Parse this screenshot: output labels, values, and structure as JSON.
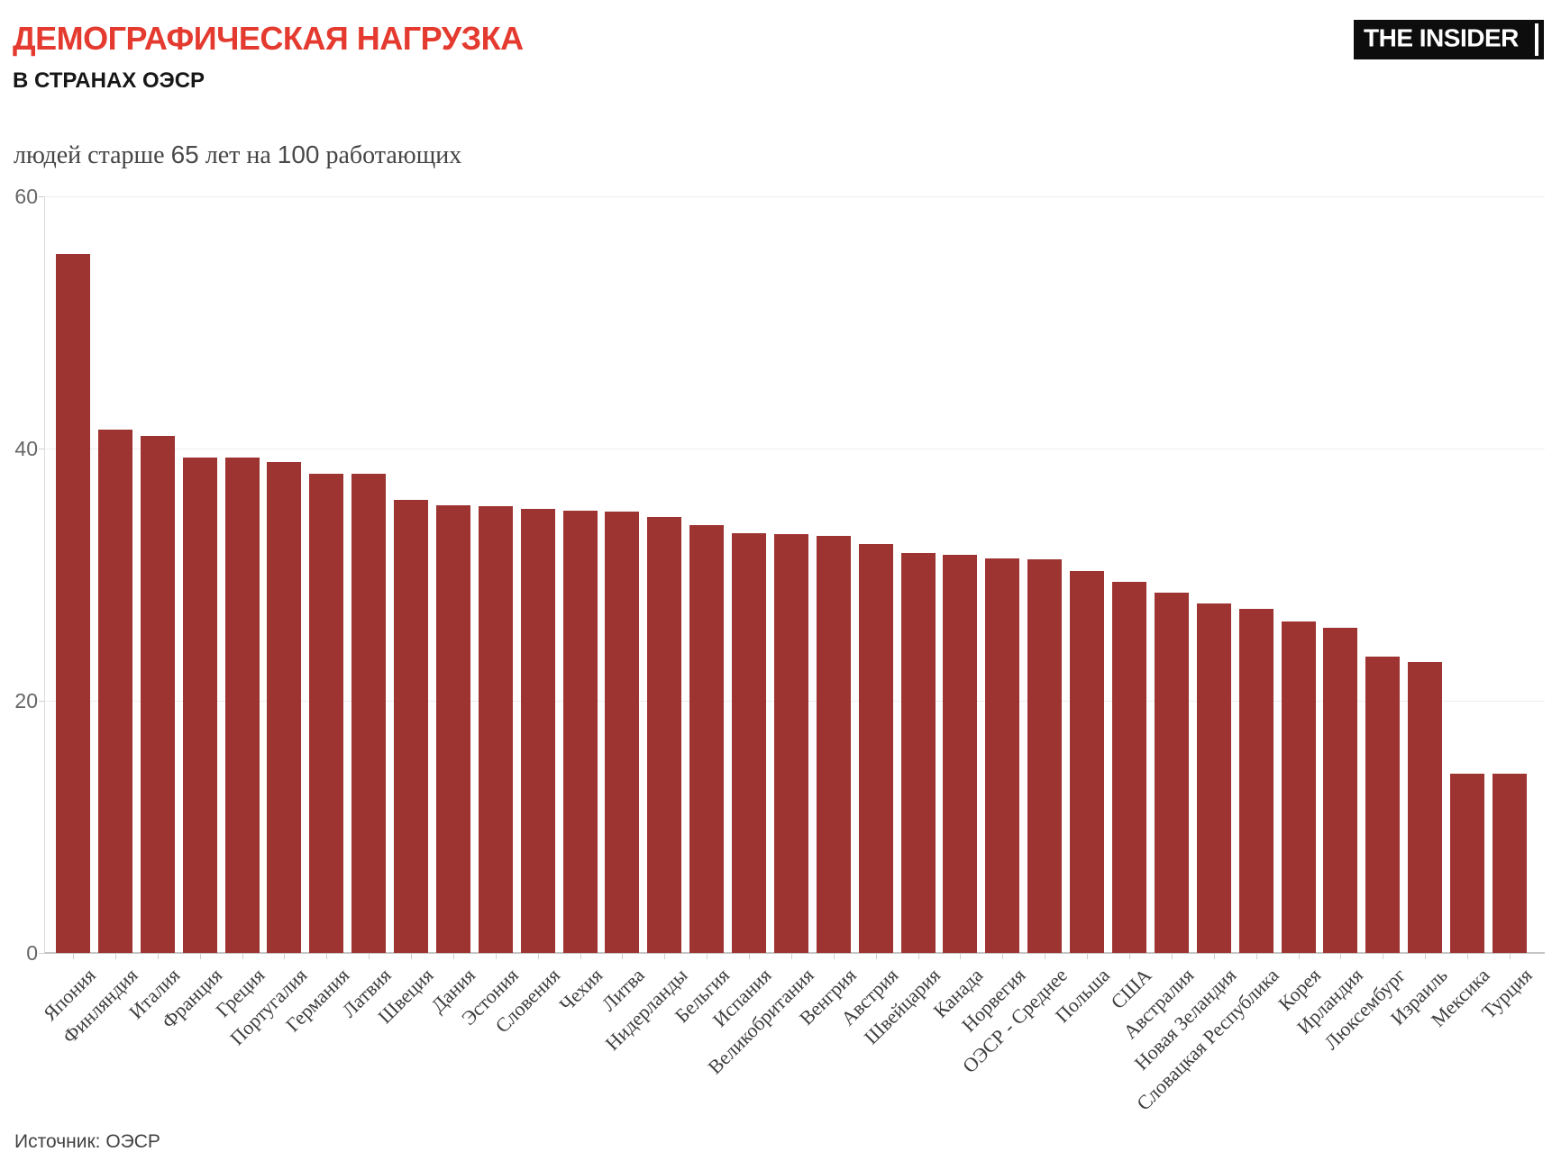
{
  "header": {
    "title": "ДЕМОГРАФИЧЕСКАЯ НАГРУЗКА",
    "subtitle": "В СТРАНАХ ОЭСР",
    "logo": "THE INSIDER"
  },
  "chart_data": {
    "type": "bar",
    "title": "людей старше 65 лет на 100 работающих",
    "ylabel": "людей старше 65 лет на 100 работающих",
    "xlabel": "",
    "categories": [
      "Япония",
      "Финляндия",
      "Италия",
      "Франция",
      "Греция",
      "Португалия",
      "Германия",
      "Латвия",
      "Швеция",
      "Дания",
      "Эстония",
      "Словения",
      "Чехия",
      "Литва",
      "Нидерланды",
      "Бельгия",
      "Испания",
      "Великобритания",
      "Венгрия",
      "Австрия",
      "Швейцария",
      "Канада",
      "Норвегия",
      "ОЭСР - Среднее",
      "Польша",
      "США",
      "Австралия",
      "Новая Зеландия",
      "Словацкая Республика",
      "Корея",
      "Ирландия",
      "Люксембург",
      "Израиль",
      "Мексика",
      "Турция"
    ],
    "values": [
      55.4,
      41.5,
      41.0,
      39.3,
      39.3,
      38.9,
      38.0,
      38.0,
      35.9,
      35.5,
      35.4,
      35.2,
      35.1,
      35.0,
      34.6,
      33.9,
      33.3,
      33.2,
      33.1,
      32.4,
      31.7,
      31.6,
      31.3,
      31.2,
      30.3,
      29.4,
      28.6,
      27.7,
      27.3,
      26.3,
      25.8,
      23.5,
      23.1,
      14.2,
      14.2
    ],
    "yticks": [
      0,
      20,
      40,
      60
    ],
    "ylim": [
      0,
      60
    ],
    "grid": "horizontal",
    "legend": "none",
    "bar_color": "#9e3431",
    "label_rotation_deg": -45
  },
  "colors": {
    "accent_red": "#e43a2f",
    "bar_red": "#9e3431",
    "title_black": "#171717",
    "axis_text_gray": "#666666",
    "category_text_gray": "#3d3d3d",
    "logo_bg": "#0d0d0d",
    "logo_text": "#ffffff"
  },
  "footer": {
    "source": "Источник: ОЭСР"
  }
}
